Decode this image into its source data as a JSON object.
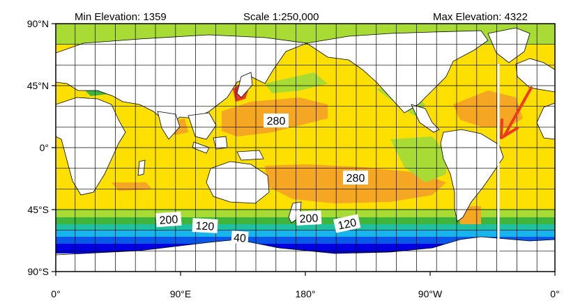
{
  "header": {
    "min_elevation": "Min Elevation: 1359",
    "scale": "Scale 1:250,000",
    "max_elevation": "Max Elevation: 4322"
  },
  "axes": {
    "lat_ticks": [
      "90°N",
      "45°N",
      "0°",
      "45°S",
      "90°S"
    ],
    "lon_ticks": [
      "0°",
      "90°E",
      "180°",
      "90°W",
      "0°"
    ]
  },
  "contour_labels": [
    "280",
    "280",
    "200",
    "120",
    "200",
    "120",
    "40"
  ],
  "colors": {
    "orange": "#f5a623",
    "yellow": "#fde000",
    "lightgreen": "#a8dc34",
    "green": "#3fb53c",
    "teal": "#1fc0a0",
    "cyan": "#18b4ee",
    "blue": "#0a58e8",
    "navy": "#0000e0",
    "arrow": "#f03a1e"
  }
}
